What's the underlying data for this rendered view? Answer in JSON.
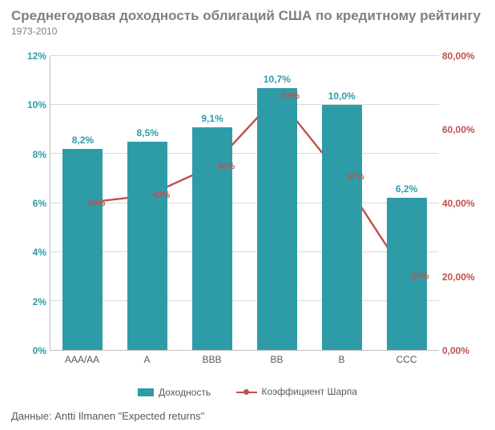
{
  "title": "Среднегодовая доходность облигаций США по кредитному рейтингу",
  "subtitle": "1973-2010",
  "source": "Данные: Antti Ilmanen \"Expected returns\"",
  "chart": {
    "type": "bar+line-dual-axis",
    "background_color": "#ffffff",
    "grid_color": "#d9d9d9",
    "axis_line_color": "#bfbfbf",
    "categories": [
      "AAA/AA",
      "A",
      "BBB",
      "BB",
      "B",
      "CCC"
    ],
    "bars": {
      "name": "Доходность",
      "color": "#2e9ca6",
      "label_color": "#2e9ca6",
      "values": [
        8.2,
        8.5,
        9.1,
        10.7,
        10.0,
        6.2
      ],
      "value_labels": [
        "8,2%",
        "8,5%",
        "9,1%",
        "10,7%",
        "10,0%",
        "6,2%"
      ],
      "bar_width_frac": 0.62
    },
    "line": {
      "name": "Коэффициент Шарпа",
      "color": "#c0504d",
      "marker_color": "#c0504d",
      "marker_size": 7,
      "line_width": 2.4,
      "values": [
        40,
        42,
        50,
        69,
        47,
        20
      ],
      "value_labels": [
        "40%",
        "42%",
        "50%",
        "69%",
        "47%",
        "20%"
      ]
    },
    "y_left": {
      "label_color": "#2e9ca6",
      "min": 0,
      "max": 12,
      "step": 2,
      "ticks": [
        "0%",
        "2%",
        "4%",
        "6%",
        "8%",
        "10%",
        "12%"
      ]
    },
    "y_right": {
      "label_color": "#c0504d",
      "min": 0,
      "max": 80,
      "step": 20,
      "ticks": [
        "0,00%",
        "20,00%",
        "40,00%",
        "60,00%",
        "80,00%"
      ]
    },
    "x_label_fontsize": 12,
    "tick_fontsize": 12,
    "bar_label_fontsize": 12,
    "title_fontsize": 17,
    "subtitle_fontsize": 12,
    "source_fontsize": 13
  },
  "legend": {
    "bar_label": "Доходность",
    "line_label": "Коэффициент Шарпа"
  }
}
